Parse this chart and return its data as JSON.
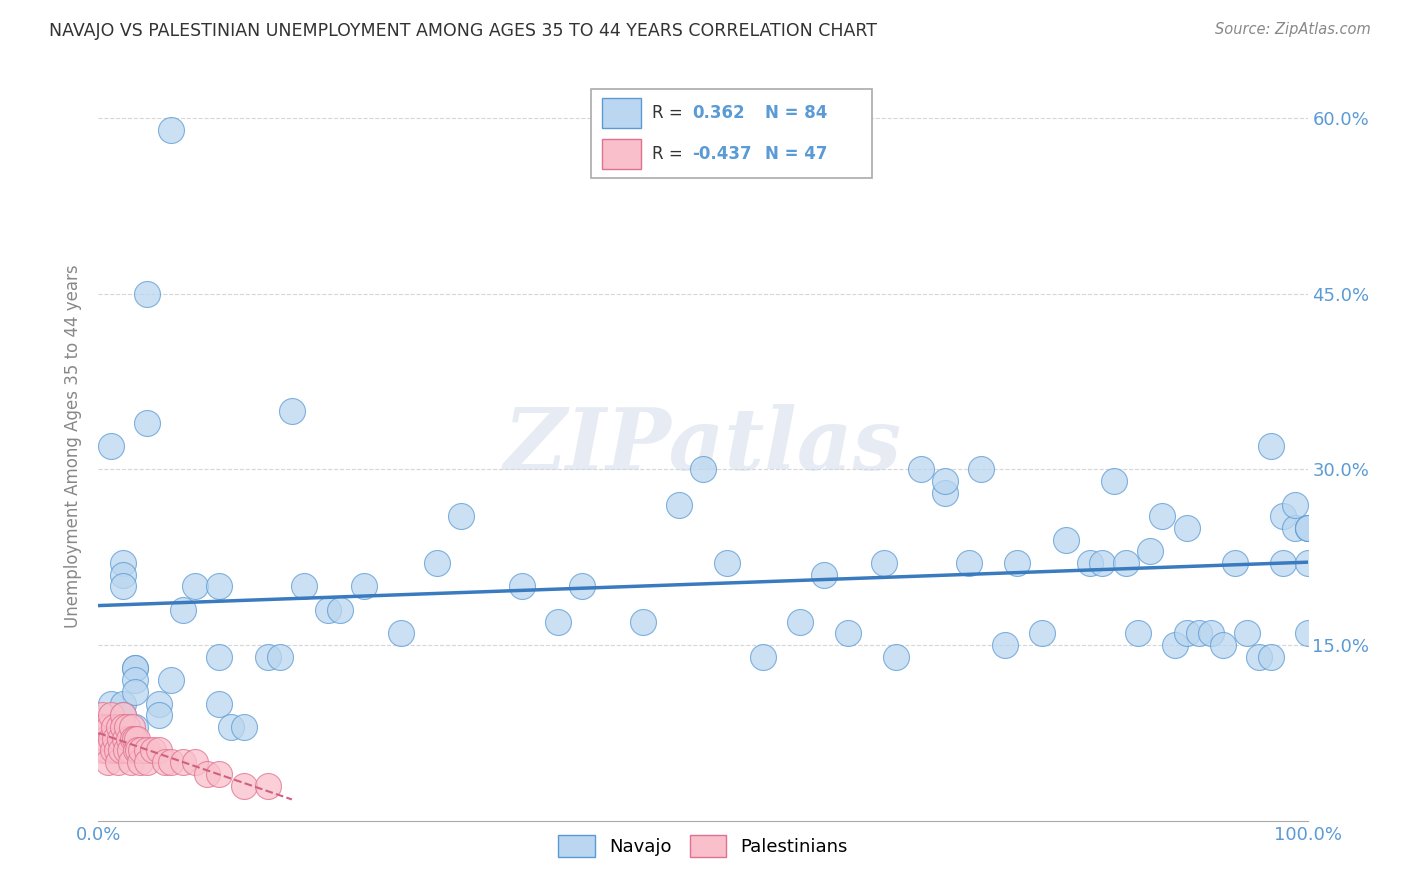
{
  "title": "NAVAJO VS PALESTINIAN UNEMPLOYMENT AMONG AGES 35 TO 44 YEARS CORRELATION CHART",
  "source": "Source: ZipAtlas.com",
  "ylabel": "Unemployment Among Ages 35 to 44 years",
  "navajo_R": 0.362,
  "navajo_N": 84,
  "palestinian_R": -0.437,
  "palestinian_N": 47,
  "navajo_color": "#bad6f0",
  "navajo_edge_color": "#5b9bd5",
  "palestinian_color": "#f9c0cb",
  "palestinian_edge_color": "#e07090",
  "navajo_line_color": "#3a7bbf",
  "palestinian_line_color": "#d06080",
  "xlim": [
    0.0,
    1.0
  ],
  "ylim": [
    0.0,
    0.64
  ],
  "xtick_pos": [
    0.0,
    1.0
  ],
  "xtick_labels": [
    "0.0%",
    "100.0%"
  ],
  "ytick_pos": [
    0.15,
    0.3,
    0.45,
    0.6
  ],
  "ytick_labels": [
    "15.0%",
    "30.0%",
    "45.0%",
    "60.0%"
  ],
  "navajo_x": [
    0.01,
    0.01,
    0.02,
    0.02,
    0.02,
    0.02,
    0.02,
    0.03,
    0.03,
    0.03,
    0.03,
    0.03,
    0.04,
    0.04,
    0.05,
    0.05,
    0.06,
    0.06,
    0.07,
    0.08,
    0.1,
    0.1,
    0.1,
    0.11,
    0.12,
    0.14,
    0.15,
    0.16,
    0.17,
    0.19,
    0.2,
    0.22,
    0.25,
    0.28,
    0.3,
    0.35,
    0.38,
    0.4,
    0.45,
    0.48,
    0.5,
    0.52,
    0.55,
    0.58,
    0.6,
    0.62,
    0.65,
    0.66,
    0.68,
    0.7,
    0.7,
    0.72,
    0.73,
    0.75,
    0.76,
    0.78,
    0.8,
    0.82,
    0.83,
    0.84,
    0.85,
    0.86,
    0.87,
    0.88,
    0.89,
    0.9,
    0.9,
    0.91,
    0.92,
    0.93,
    0.94,
    0.95,
    0.96,
    0.97,
    0.97,
    0.98,
    0.98,
    0.99,
    0.99,
    1.0,
    1.0,
    1.0,
    1.0,
    1.0
  ],
  "navajo_y": [
    0.32,
    0.1,
    0.22,
    0.21,
    0.2,
    0.1,
    0.09,
    0.13,
    0.13,
    0.12,
    0.11,
    0.08,
    0.45,
    0.34,
    0.1,
    0.09,
    0.59,
    0.12,
    0.18,
    0.2,
    0.2,
    0.14,
    0.1,
    0.08,
    0.08,
    0.14,
    0.14,
    0.35,
    0.2,
    0.18,
    0.18,
    0.2,
    0.16,
    0.22,
    0.26,
    0.2,
    0.17,
    0.2,
    0.17,
    0.27,
    0.3,
    0.22,
    0.14,
    0.17,
    0.21,
    0.16,
    0.22,
    0.14,
    0.3,
    0.28,
    0.29,
    0.22,
    0.3,
    0.15,
    0.22,
    0.16,
    0.24,
    0.22,
    0.22,
    0.29,
    0.22,
    0.16,
    0.23,
    0.26,
    0.15,
    0.25,
    0.16,
    0.16,
    0.16,
    0.15,
    0.22,
    0.16,
    0.14,
    0.14,
    0.32,
    0.26,
    0.22,
    0.25,
    0.27,
    0.25,
    0.22,
    0.25,
    0.16,
    0.25
  ],
  "palestinian_x": [
    0.001,
    0.002,
    0.003,
    0.004,
    0.005,
    0.006,
    0.007,
    0.008,
    0.009,
    0.01,
    0.01,
    0.012,
    0.013,
    0.014,
    0.015,
    0.016,
    0.017,
    0.018,
    0.019,
    0.02,
    0.02,
    0.022,
    0.023,
    0.024,
    0.025,
    0.026,
    0.027,
    0.028,
    0.029,
    0.03,
    0.031,
    0.032,
    0.033,
    0.034,
    0.035,
    0.04,
    0.04,
    0.045,
    0.05,
    0.055,
    0.06,
    0.07,
    0.08,
    0.09,
    0.1,
    0.12,
    0.14
  ],
  "palestinian_y": [
    0.08,
    0.07,
    0.09,
    0.06,
    0.08,
    0.07,
    0.06,
    0.05,
    0.08,
    0.09,
    0.07,
    0.06,
    0.08,
    0.07,
    0.06,
    0.05,
    0.08,
    0.07,
    0.06,
    0.09,
    0.08,
    0.07,
    0.06,
    0.08,
    0.07,
    0.06,
    0.05,
    0.08,
    0.07,
    0.07,
    0.06,
    0.07,
    0.06,
    0.05,
    0.06,
    0.06,
    0.05,
    0.06,
    0.06,
    0.05,
    0.05,
    0.05,
    0.05,
    0.04,
    0.04,
    0.03,
    0.03
  ]
}
